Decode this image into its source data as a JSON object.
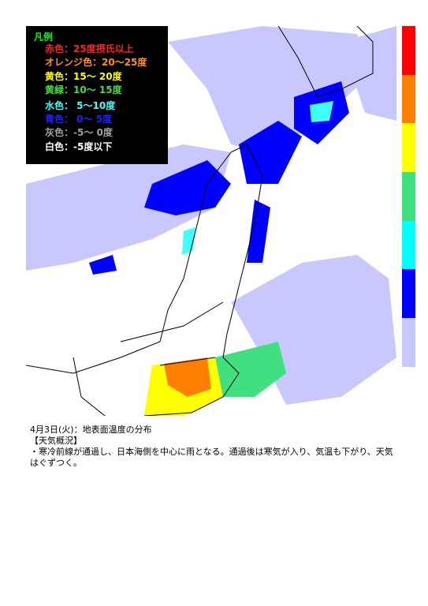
{
  "legend": {
    "title": "凡例",
    "title_color": "#00ff00",
    "items": [
      {
        "label": "赤色：25度摂氏以上",
        "color": "#ff2020"
      },
      {
        "label": "オレンジ色：20～25度",
        "color": "#ff9020"
      },
      {
        "label": "黄色：15～ 20度",
        "color": "#ffff00"
      },
      {
        "label": "黄緑：10～ 15度",
        "color": "#40e040"
      },
      {
        "label": "水色： 5～10度",
        "color": "#40ffff"
      },
      {
        "label": "青色： 0～ 5度",
        "color": "#2020ff"
      },
      {
        "label": "灰色：-5～ 0度",
        "color": "#a0a0a0"
      },
      {
        "label": "白色：-5度以下",
        "color": "#ffffff"
      }
    ]
  },
  "colorbar": [
    "#ff0000",
    "#ff8000",
    "#ffff00",
    "#40e080",
    "#00ffff",
    "#0000ff",
    "#c8c8ff"
  ],
  "caption": {
    "title": "4月3日(火)：地表面温度の分布",
    "heading": "【天気概況】",
    "body": "・寒冷前線が通過し、日本海側を中心に雨となる。通過後は寒気が入り、気温も下がり、天気はぐずつく。"
  }
}
